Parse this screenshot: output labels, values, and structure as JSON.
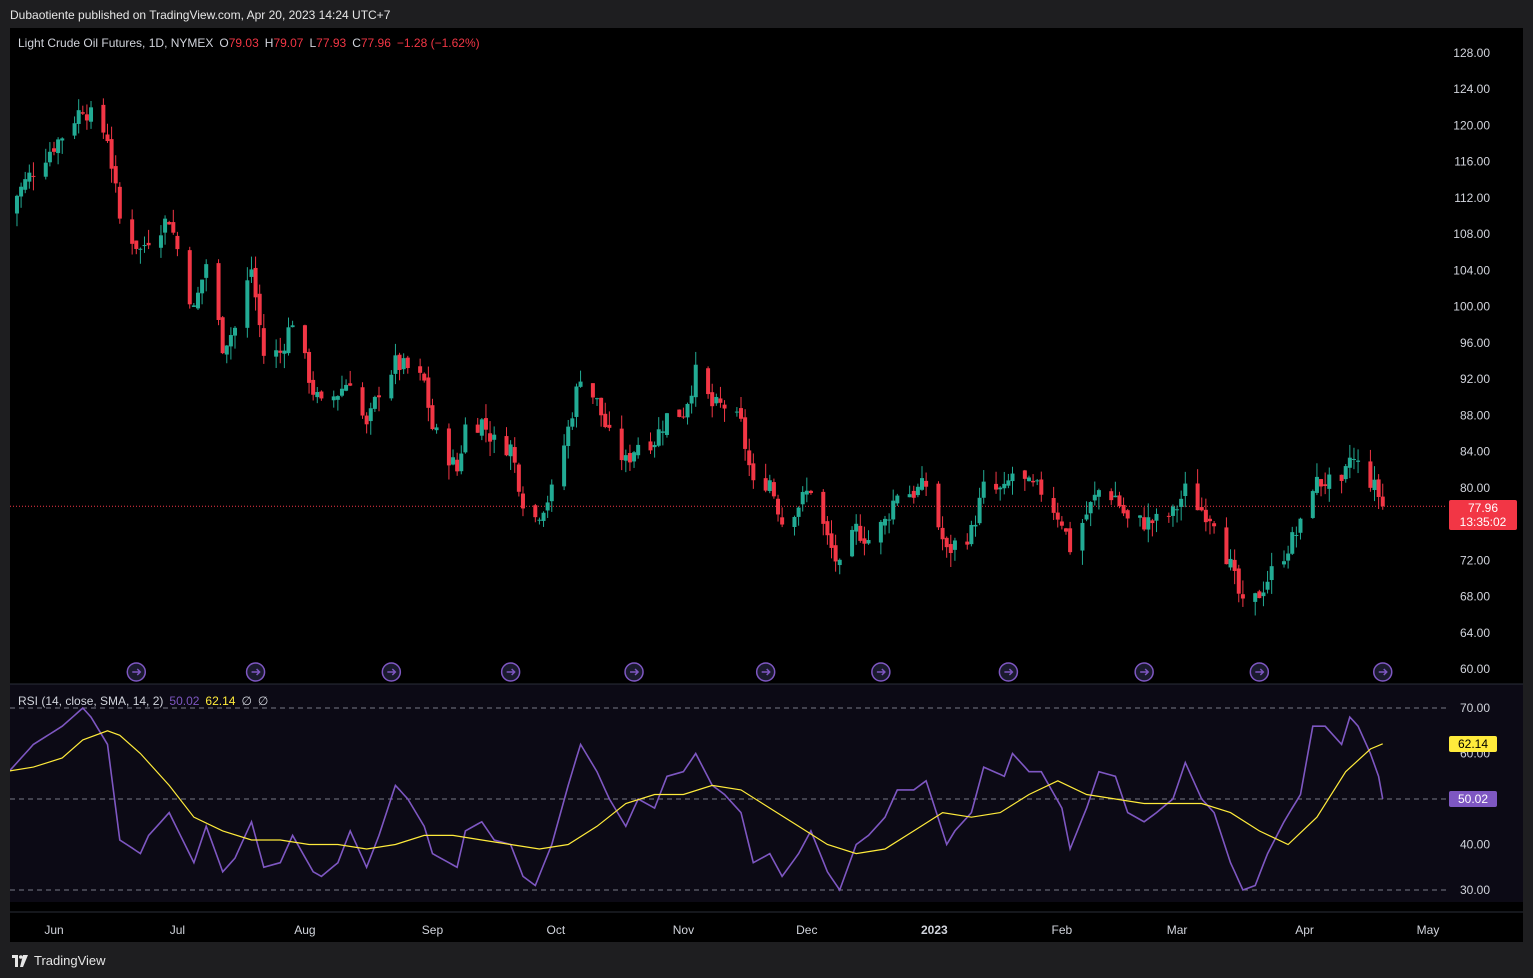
{
  "header": {
    "published": "Dubaotiente published on TradingView.com, Apr 20, 2023 14:24 UTC+7"
  },
  "legend": {
    "symbol": "Light Crude Oil Futures, 1D, NYMEX",
    "o_label": "O",
    "o": "79.03",
    "h_label": "H",
    "h": "79.07",
    "l_label": "L",
    "l": "77.93",
    "c_label": "C",
    "c": "77.96",
    "change": "−1.28 (−1.62%)"
  },
  "price_badge": {
    "price": "77.96",
    "countdown": "13:35:02"
  },
  "rsi_legend": {
    "label": "RSI (14, close, SMA, 14, 2)",
    "rsi": "50.02",
    "ma": "62.14",
    "x1": "∅",
    "x2": "∅"
  },
  "rsi_badges": {
    "ma": "62.14",
    "rsi": "50.02"
  },
  "footer": {
    "brand": "TradingView"
  },
  "colors": {
    "up": "#22ab94",
    "down": "#f23645",
    "rsi": "#7e57c2",
    "rsi_ma": "#ffeb3b",
    "background": "#000000"
  },
  "chart_data": [
    {
      "type": "candlestick",
      "title": "Light Crude Oil Futures, 1D, NYMEX",
      "ylim": [
        58,
        130
      ],
      "y_ticks": [
        "128.00",
        "124.00",
        "120.00",
        "116.00",
        "112.00",
        "108.00",
        "104.00",
        "100.00",
        "96.00",
        "92.00",
        "88.00",
        "84.00",
        "80.00",
        "76.00",
        "72.00",
        "68.00",
        "64.00",
        "60.00"
      ],
      "x_ticks": [
        "Jun",
        "Jul",
        "Aug",
        "Sep",
        "Oct",
        "Nov",
        "Dec",
        "2023",
        "Feb",
        "Mar",
        "Apr",
        "May"
      ],
      "x_tick_dates": [
        "2022-06-01",
        "2022-07-01",
        "2022-08-01",
        "2022-09-01",
        "2022-10-01",
        "2022-11-01",
        "2022-12-01",
        "2023-01-01",
        "2023-02-01",
        "2023-03-01",
        "2023-04-01",
        "2023-05-01"
      ],
      "last_price": 77.96,
      "close_anchors": [
        [
          "2022-05-20",
          110.3
        ],
        [
          "2022-05-27",
          115.1
        ],
        [
          "2022-06-03",
          118.9
        ],
        [
          "2022-06-08",
          122.1
        ],
        [
          "2022-06-10",
          121.0
        ],
        [
          "2022-06-14",
          118.8
        ],
        [
          "2022-06-17",
          109.6
        ],
        [
          "2022-06-22",
          106.2
        ],
        [
          "2022-06-24",
          107.6
        ],
        [
          "2022-06-29",
          109.8
        ],
        [
          "2022-07-05",
          99.5
        ],
        [
          "2022-07-08",
          104.8
        ],
        [
          "2022-07-12",
          95.8
        ],
        [
          "2022-07-15",
          97.6
        ],
        [
          "2022-07-19",
          104.2
        ],
        [
          "2022-07-22",
          94.7
        ],
        [
          "2022-07-26",
          94.9
        ],
        [
          "2022-07-29",
          98.6
        ],
        [
          "2022-08-03",
          90.7
        ],
        [
          "2022-08-05",
          89.0
        ],
        [
          "2022-08-09",
          90.5
        ],
        [
          "2022-08-12",
          92.1
        ],
        [
          "2022-08-16",
          86.5
        ],
        [
          "2022-08-19",
          90.8
        ],
        [
          "2022-08-23",
          93.7
        ],
        [
          "2022-08-26",
          93.1
        ],
        [
          "2022-08-30",
          91.6
        ],
        [
          "2022-09-01",
          86.6
        ],
        [
          "2022-09-07",
          81.9
        ],
        [
          "2022-09-09",
          86.8
        ],
        [
          "2022-09-13",
          87.3
        ],
        [
          "2022-09-16",
          85.1
        ],
        [
          "2022-09-20",
          84.5
        ],
        [
          "2022-09-23",
          78.7
        ],
        [
          "2022-09-26",
          76.7
        ],
        [
          "2022-09-30",
          79.5
        ],
        [
          "2022-10-04",
          86.5
        ],
        [
          "2022-10-07",
          92.6
        ],
        [
          "2022-10-11",
          89.4
        ],
        [
          "2022-10-14",
          85.6
        ],
        [
          "2022-10-18",
          82.8
        ],
        [
          "2022-10-21",
          85.0
        ],
        [
          "2022-10-25",
          85.3
        ],
        [
          "2022-10-28",
          87.9
        ],
        [
          "2022-11-01",
          88.4
        ],
        [
          "2022-11-04",
          92.6
        ],
        [
          "2022-11-08",
          89.0
        ],
        [
          "2022-11-11",
          89.0
        ],
        [
          "2022-11-15",
          86.9
        ],
        [
          "2022-11-18",
          80.1
        ],
        [
          "2022-11-22",
          80.9
        ],
        [
          "2022-11-25",
          76.3
        ],
        [
          "2022-11-29",
          78.2
        ],
        [
          "2022-12-02",
          79.98
        ],
        [
          "2022-12-06",
          74.3
        ],
        [
          "2022-12-09",
          71.0
        ],
        [
          "2022-12-13",
          75.4
        ],
        [
          "2022-12-16",
          74.3
        ],
        [
          "2022-12-20",
          76.2
        ],
        [
          "2022-12-23",
          79.6
        ],
        [
          "2022-12-27",
          79.5
        ],
        [
          "2022-12-30",
          80.3
        ],
        [
          "2023-01-04",
          72.8
        ],
        [
          "2023-01-06",
          73.8
        ],
        [
          "2023-01-10",
          75.1
        ],
        [
          "2023-01-13",
          79.9
        ],
        [
          "2023-01-18",
          79.5
        ],
        [
          "2023-01-20",
          81.6
        ],
        [
          "2023-01-24",
          80.1
        ],
        [
          "2023-01-27",
          79.7
        ],
        [
          "2023-02-01",
          76.4
        ],
        [
          "2023-02-03",
          73.4
        ],
        [
          "2023-02-07",
          77.1
        ],
        [
          "2023-02-10",
          79.7
        ],
        [
          "2023-02-14",
          79.1
        ],
        [
          "2023-02-17",
          76.3
        ],
        [
          "2023-02-21",
          76.2
        ],
        [
          "2023-02-24",
          76.3
        ],
        [
          "2023-02-28",
          77.1
        ],
        [
          "2023-03-03",
          79.7
        ],
        [
          "2023-03-07",
          77.6
        ],
        [
          "2023-03-10",
          76.7
        ],
        [
          "2023-03-14",
          71.3
        ],
        [
          "2023-03-17",
          66.7
        ],
        [
          "2023-03-20",
          67.6
        ],
        [
          "2023-03-23",
          69.96
        ],
        [
          "2023-03-27",
          72.8
        ],
        [
          "2023-03-31",
          75.7
        ],
        [
          "2023-04-03",
          80.4
        ],
        [
          "2023-04-06",
          80.7
        ],
        [
          "2023-04-10",
          79.7
        ],
        [
          "2023-04-12",
          83.3
        ],
        [
          "2023-04-14",
          82.5
        ],
        [
          "2023-04-17",
          80.8
        ],
        [
          "2023-04-19",
          79.2
        ],
        [
          "2023-04-20",
          77.96
        ]
      ]
    },
    {
      "type": "line",
      "title": "RSI (14, close, SMA, 14, 2)",
      "ylim": [
        27,
        72
      ],
      "y_ticks": [
        "70.00",
        "60.00",
        "50.00",
        "40.00",
        "30.00"
      ],
      "bands": [
        70,
        50,
        30
      ],
      "series": [
        {
          "name": "RSI",
          "values_anchored": [
            [
              "2022-05-20",
              55
            ],
            [
              "2022-05-27",
              62
            ],
            [
              "2022-06-03",
              66
            ],
            [
              "2022-06-08",
              70
            ],
            [
              "2022-06-10",
              68
            ],
            [
              "2022-06-14",
              62
            ],
            [
              "2022-06-17",
              41
            ],
            [
              "2022-06-22",
              38
            ],
            [
              "2022-06-24",
              42
            ],
            [
              "2022-06-29",
              47
            ],
            [
              "2022-07-05",
              36
            ],
            [
              "2022-07-08",
              44
            ],
            [
              "2022-07-12",
              34
            ],
            [
              "2022-07-15",
              37
            ],
            [
              "2022-07-19",
              45
            ],
            [
              "2022-07-22",
              35
            ],
            [
              "2022-07-26",
              36
            ],
            [
              "2022-07-29",
              42
            ],
            [
              "2022-08-03",
              34
            ],
            [
              "2022-08-05",
              33
            ],
            [
              "2022-08-09",
              36
            ],
            [
              "2022-08-12",
              43
            ],
            [
              "2022-08-16",
              35
            ],
            [
              "2022-08-19",
              42
            ],
            [
              "2022-08-23",
              53
            ],
            [
              "2022-08-26",
              50
            ],
            [
              "2022-08-30",
              44
            ],
            [
              "2022-09-01",
              38
            ],
            [
              "2022-09-07",
              35
            ],
            [
              "2022-09-09",
              43
            ],
            [
              "2022-09-13",
              45
            ],
            [
              "2022-09-16",
              41
            ],
            [
              "2022-09-20",
              40
            ],
            [
              "2022-09-23",
              33
            ],
            [
              "2022-09-26",
              31
            ],
            [
              "2022-09-30",
              40
            ],
            [
              "2022-10-04",
              53
            ],
            [
              "2022-10-07",
              62
            ],
            [
              "2022-10-11",
              56
            ],
            [
              "2022-10-14",
              50
            ],
            [
              "2022-10-18",
              44
            ],
            [
              "2022-10-21",
              50
            ],
            [
              "2022-10-25",
              48
            ],
            [
              "2022-10-28",
              55
            ],
            [
              "2022-11-01",
              56
            ],
            [
              "2022-11-04",
              60
            ],
            [
              "2022-11-08",
              53
            ],
            [
              "2022-11-11",
              51
            ],
            [
              "2022-11-15",
              47
            ],
            [
              "2022-11-18",
              36
            ],
            [
              "2022-11-22",
              38
            ],
            [
              "2022-11-25",
              33
            ],
            [
              "2022-11-29",
              38
            ],
            [
              "2022-12-02",
              43
            ],
            [
              "2022-12-06",
              34
            ],
            [
              "2022-12-09",
              30
            ],
            [
              "2022-12-13",
              40
            ],
            [
              "2022-12-16",
              42
            ],
            [
              "2022-12-20",
              46
            ],
            [
              "2022-12-23",
              52
            ],
            [
              "2022-12-27",
              52
            ],
            [
              "2022-12-30",
              54
            ],
            [
              "2023-01-04",
              40
            ],
            [
              "2023-01-06",
              43
            ],
            [
              "2023-01-10",
              47
            ],
            [
              "2023-01-13",
              57
            ],
            [
              "2023-01-18",
              55
            ],
            [
              "2023-01-20",
              60
            ],
            [
              "2023-01-24",
              56
            ],
            [
              "2023-01-27",
              56
            ],
            [
              "2023-02-01",
              48
            ],
            [
              "2023-02-03",
              39
            ],
            [
              "2023-02-07",
              48
            ],
            [
              "2023-02-10",
              56
            ],
            [
              "2023-02-14",
              55
            ],
            [
              "2023-02-17",
              47
            ],
            [
              "2023-02-21",
              45
            ],
            [
              "2023-02-24",
              47
            ],
            [
              "2023-02-28",
              50
            ],
            [
              "2023-03-03",
              58
            ],
            [
              "2023-03-07",
              50
            ],
            [
              "2023-03-10",
              47
            ],
            [
              "2023-03-14",
              36
            ],
            [
              "2023-03-17",
              30
            ],
            [
              "2023-03-20",
              31
            ],
            [
              "2023-03-23",
              38
            ],
            [
              "2023-03-27",
              45
            ],
            [
              "2023-03-31",
              51
            ],
            [
              "2023-04-03",
              66
            ],
            [
              "2023-04-06",
              66
            ],
            [
              "2023-04-10",
              62
            ],
            [
              "2023-04-12",
              68
            ],
            [
              "2023-04-14",
              66
            ],
            [
              "2023-04-17",
              60
            ],
            [
              "2023-04-19",
              55
            ],
            [
              "2023-04-20",
              50.02
            ]
          ]
        },
        {
          "name": "SMA",
          "values_anchored": [
            [
              "2022-05-20",
              56
            ],
            [
              "2022-05-27",
              57
            ],
            [
              "2022-06-03",
              59
            ],
            [
              "2022-06-08",
              63
            ],
            [
              "2022-06-14",
              65
            ],
            [
              "2022-06-17",
              64
            ],
            [
              "2022-06-22",
              60
            ],
            [
              "2022-06-29",
              53
            ],
            [
              "2022-07-05",
              46
            ],
            [
              "2022-07-12",
              43
            ],
            [
              "2022-07-19",
              41
            ],
            [
              "2022-07-26",
              41
            ],
            [
              "2022-08-02",
              40
            ],
            [
              "2022-08-09",
              40
            ],
            [
              "2022-08-16",
              39
            ],
            [
              "2022-08-23",
              40
            ],
            [
              "2022-08-30",
              42
            ],
            [
              "2022-09-06",
              42
            ],
            [
              "2022-09-13",
              41
            ],
            [
              "2022-09-20",
              40
            ],
            [
              "2022-09-27",
              39
            ],
            [
              "2022-10-04",
              40
            ],
            [
              "2022-10-11",
              44
            ],
            [
              "2022-10-18",
              49
            ],
            [
              "2022-10-25",
              51
            ],
            [
              "2022-11-01",
              51
            ],
            [
              "2022-11-08",
              53
            ],
            [
              "2022-11-15",
              52
            ],
            [
              "2022-11-22",
              48
            ],
            [
              "2022-11-29",
              44
            ],
            [
              "2022-12-06",
              40
            ],
            [
              "2022-12-13",
              38
            ],
            [
              "2022-12-20",
              39
            ],
            [
              "2022-12-27",
              43
            ],
            [
              "2023-01-03",
              47
            ],
            [
              "2023-01-10",
              46
            ],
            [
              "2023-01-17",
              47
            ],
            [
              "2023-01-24",
              51
            ],
            [
              "2023-01-31",
              54
            ],
            [
              "2023-02-07",
              51
            ],
            [
              "2023-02-14",
              50
            ],
            [
              "2023-02-21",
              49
            ],
            [
              "2023-02-28",
              49
            ],
            [
              "2023-03-07",
              49
            ],
            [
              "2023-03-14",
              47
            ],
            [
              "2023-03-21",
              43
            ],
            [
              "2023-03-28",
              40
            ],
            [
              "2023-04-04",
              46
            ],
            [
              "2023-04-11",
              56
            ],
            [
              "2023-04-17",
              61
            ],
            [
              "2023-04-20",
              62.14
            ]
          ]
        }
      ]
    }
  ]
}
